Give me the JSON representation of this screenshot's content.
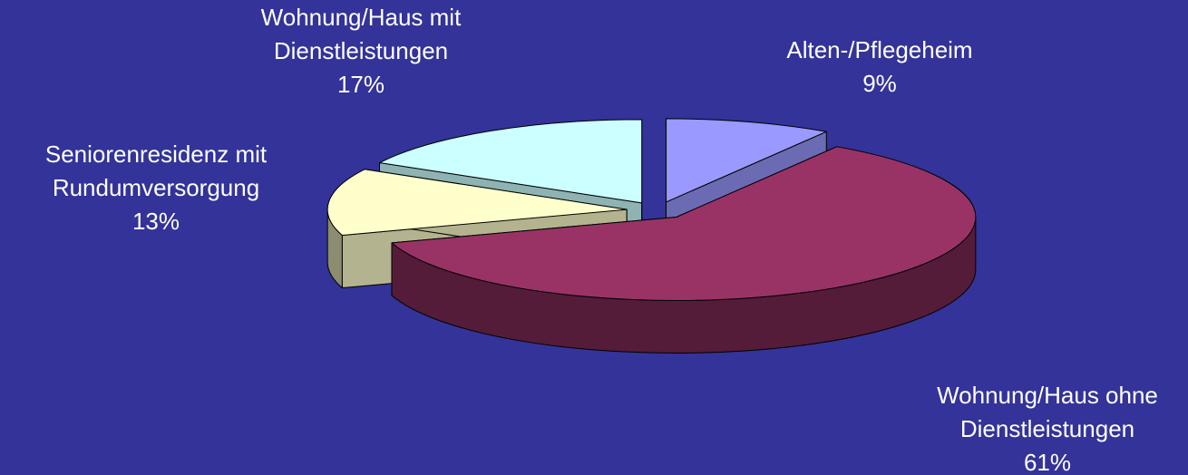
{
  "chart_data": {
    "type": "pie3d",
    "categories": [
      "Alten-/Pflegeheim",
      "Wohnung/Haus ohne Dienstleistungen",
      "Seniorenresidenz mit Rundumversorgung",
      "Wohnung/Haus mit Dienstleistungen"
    ],
    "values": [
      9,
      61,
      13,
      17
    ],
    "value_labels": [
      "9%",
      "61%",
      "13%",
      "17%"
    ],
    "colors": [
      "#9999ff",
      "#993366",
      "#ffffcc",
      "#ccffff"
    ]
  }
}
